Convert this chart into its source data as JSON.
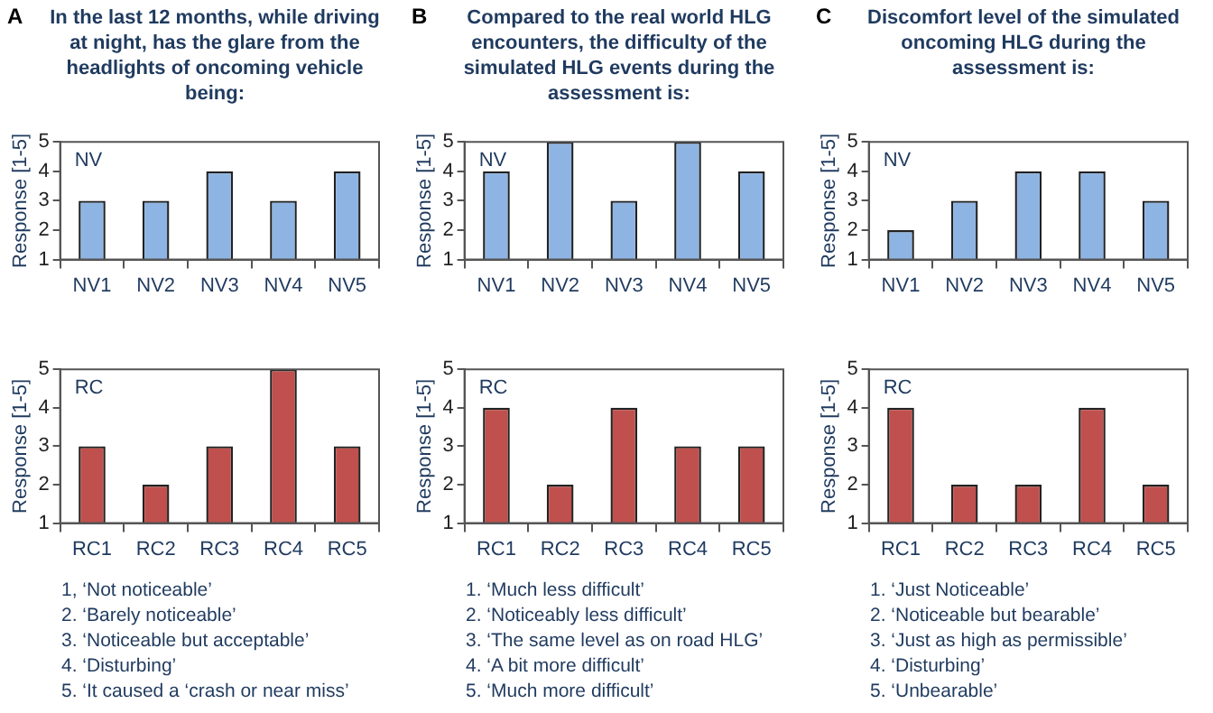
{
  "chart_data": [
    {
      "type": "bar",
      "title": "A",
      "subtitle": "In the last 12 months, while driving at night, has the glare from the headlights of oncoming vehicle being:",
      "ylabel": "Response [1-5]",
      "categories": [
        "NV1",
        "NV2",
        "NV3",
        "NV4",
        "NV5"
      ],
      "values": [
        3,
        3,
        4,
        3,
        4
      ],
      "color": "#8eb4e3",
      "ylim": [
        1,
        5
      ],
      "yticks": [
        1,
        2,
        3,
        4,
        5
      ],
      "annotations": [
        "NV"
      ]
    },
    {
      "type": "bar",
      "ylabel": "Response [1-5]",
      "categories": [
        "RC1",
        "RC2",
        "RC3",
        "RC4",
        "RC5"
      ],
      "values": [
        3,
        2,
        3,
        5,
        3
      ],
      "color": "#c0504d",
      "ylim": [
        1,
        5
      ],
      "yticks": [
        1,
        2,
        3,
        4,
        5
      ],
      "annotations": [
        "RC",
        "1, ‘Not noticeable’",
        "2. ‘Barely noticeable’",
        "3. ‘Noticeable but acceptable’",
        "4. ‘Disturbing’",
        "5. ‘It caused a ‘crash or near miss’"
      ]
    },
    {
      "type": "bar",
      "title": "B",
      "subtitle": "Compared to the real world HLG encounters, the difficulty of the simulated HLG events during the assessment is:",
      "ylabel": "Response [1-5]",
      "categories": [
        "NV1",
        "NV2",
        "NV3",
        "NV4",
        "NV5"
      ],
      "values": [
        4,
        5,
        3,
        5,
        4
      ],
      "color": "#8eb4e3",
      "ylim": [
        1,
        5
      ],
      "yticks": [
        1,
        2,
        3,
        4,
        5
      ],
      "annotations": [
        "NV"
      ]
    },
    {
      "type": "bar",
      "ylabel": "Response [1-5]",
      "categories": [
        "RC1",
        "RC2",
        "RC3",
        "RC4",
        "RC5"
      ],
      "values": [
        4,
        2,
        4,
        3,
        3
      ],
      "color": "#c0504d",
      "ylim": [
        1,
        5
      ],
      "yticks": [
        1,
        2,
        3,
        4,
        5
      ],
      "annotations": [
        "RC",
        "1. ‘Much less difficult’",
        "2. ‘Noticeably less difficult’",
        "3. ‘The same level as on road HLG’",
        "4. ‘A bit more difficult’",
        "5. ‘Much more difficult’"
      ]
    },
    {
      "type": "bar",
      "title": "C",
      "subtitle": "Discomfort level of the simulated oncoming HLG during the assessment is:",
      "ylabel": "Response [1-5]",
      "categories": [
        "NV1",
        "NV2",
        "NV3",
        "NV4",
        "NV5"
      ],
      "values": [
        2,
        3,
        4,
        4,
        3
      ],
      "color": "#8eb4e3",
      "ylim": [
        1,
        5
      ],
      "yticks": [
        1,
        2,
        3,
        4,
        5
      ],
      "annotations": [
        "NV"
      ]
    },
    {
      "type": "bar",
      "ylabel": "Response [1-5]",
      "categories": [
        "RC1",
        "RC2",
        "RC3",
        "RC4",
        "RC5"
      ],
      "values": [
        4,
        2,
        2,
        4,
        2
      ],
      "color": "#c0504d",
      "ylim": [
        1,
        5
      ],
      "yticks": [
        1,
        2,
        3,
        4,
        5
      ],
      "annotations": [
        "RC",
        "1. ‘Just Noticeable’",
        "2. ‘Noticeable but bearable’",
        "3. ‘Just as high as permissible’",
        "4. ‘Disturbing’",
        "5. ‘Unbearable’"
      ]
    }
  ]
}
